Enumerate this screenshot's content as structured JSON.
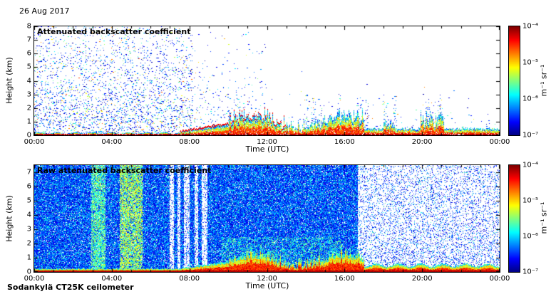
{
  "date_label": "26 Aug 2017",
  "footer_label": "Sodankylä CT25K ceilometer",
  "panels": [
    {
      "title": "Attenuated backscatter coefficient",
      "xlabel": "Time (UTC)",
      "ylabel": "Height (km)",
      "x_ticks": [
        "00:00",
        "04:00",
        "08:00",
        "12:00",
        "16:00",
        "20:00",
        "00:00"
      ],
      "y_ticks": [
        "0",
        "1",
        "2",
        "3",
        "4",
        "5",
        "6",
        "7",
        "8"
      ]
    },
    {
      "title": "Raw attenuated backscatter coefficient",
      "xlabel": "Time (UTC)",
      "ylabel": "Height (km)",
      "x_ticks": [
        "00:00",
        "04:00",
        "08:00",
        "12:00",
        "16:00",
        "20:00",
        "00:00"
      ],
      "y_ticks": [
        "0",
        "1",
        "2",
        "3",
        "4",
        "5",
        "6",
        "7"
      ]
    }
  ],
  "colorbar": {
    "ticks": [
      "10⁻⁴",
      "10⁻⁵",
      "10⁻⁶",
      "10⁻⁷"
    ],
    "unit": "m⁻¹ sr⁻¹",
    "colormap": "jet",
    "scale": "log",
    "min": 1e-07,
    "max": 0.0001
  },
  "chart_data": [
    {
      "type": "heatmap",
      "title": "Attenuated backscatter coefficient",
      "xlabel": "Time (UTC)",
      "ylabel": "Height (km)",
      "x_tick_labels": [
        "00:00",
        "04:00",
        "08:00",
        "12:00",
        "16:00",
        "20:00",
        "00:00"
      ],
      "x_range_hours": [
        0,
        24
      ],
      "y_range_km": [
        0,
        8
      ],
      "color_scale": {
        "type": "log",
        "min": 1e-07,
        "max": 0.0001,
        "unit": "m⁻¹ sr⁻¹",
        "colormap": "jet"
      },
      "features": [
        "Scattered weak echoes (blue/green dots, ~1e-7 to 1e-6) up to 8 km from 00:00 to ~08:00, density decreasing with height",
        "Strong near-surface layer (red/orange, ~1e-4) below ~0.3 km through the whole day",
        "Boundary-layer plumes of mixed colors reaching ~1-2 km between ~10:00 and 17:00",
        "Thin reddish layer-top line rising from ~0.2 km near 08:00 to ~0.8 km near noon",
        "Sparse isolated echo columns below ~3 km near 15:00-17:00 and a clump near 20:00-21:00",
        "Mostly clear (white) above 2 km after 12:00"
      ]
    },
    {
      "type": "heatmap",
      "title": "Raw attenuated backscatter coefficient",
      "xlabel": "Time (UTC)",
      "ylabel": "Height (km)",
      "x_tick_labels": [
        "00:00",
        "04:00",
        "08:00",
        "12:00",
        "16:00",
        "20:00",
        "00:00"
      ],
      "x_range_hours": [
        0,
        24
      ],
      "y_range_km": [
        0,
        7.5
      ],
      "color_scale": {
        "type": "log",
        "min": 1e-07,
        "max": 0.0001,
        "unit": "m⁻¹ sr⁻¹",
        "colormap": "jet"
      },
      "features": [
        "Dense blue background noise at all heights from 00:00 to ~16:30",
        "Bright green/yellow full-height vertical bands near ~03:00-03:40 and ~04:30-05:30",
        "Pale low-signal vertical stripes between ~07:00 and ~09:00",
        "Markedly reduced background noise (pale/white with sparse blue dots) from ~16:40 to 24:00",
        "Continuous strong surface layer (red/orange/yellow/green, up to ~0.5 km) across the whole day, deepening to ~1-2 km plumes between 10:00 and 17:00",
        "Greenish enhanced noise below ~2.5 km around 10:00-16:00"
      ]
    }
  ]
}
